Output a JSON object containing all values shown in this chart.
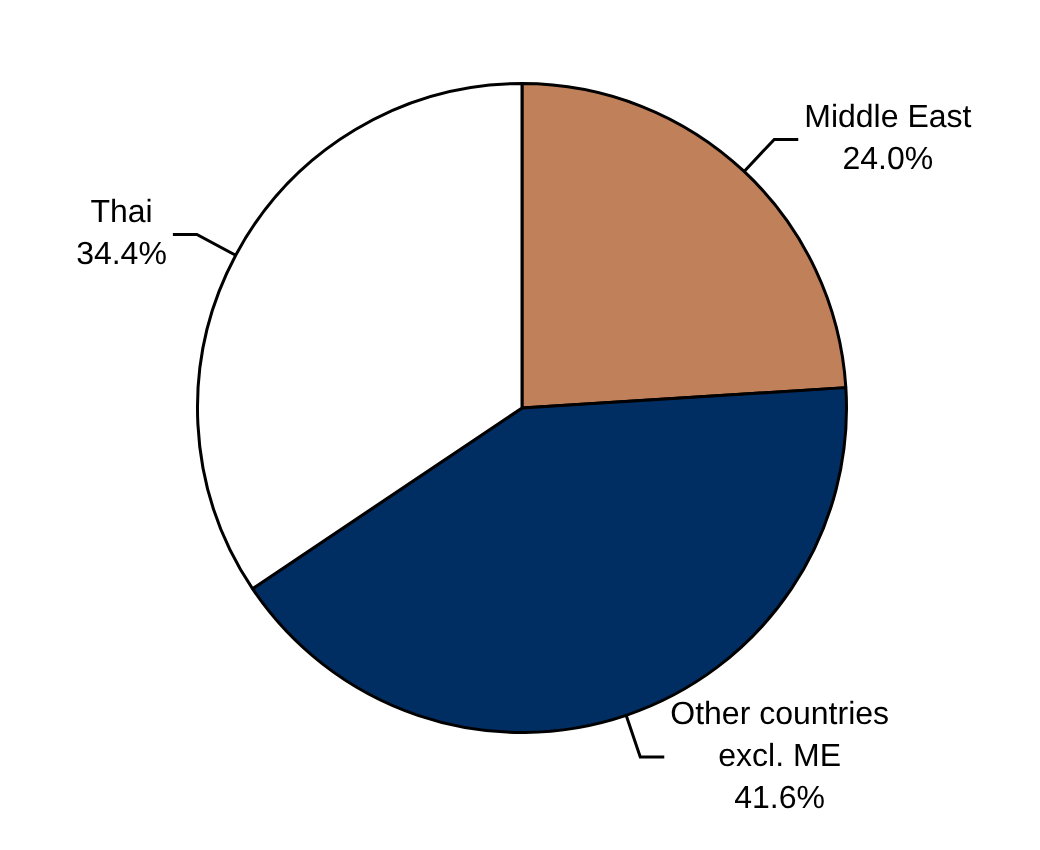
{
  "chart_data": {
    "type": "pie",
    "categories": [
      "Middle East",
      "Other countries excl. ME",
      "Thai"
    ],
    "values": [
      24.0,
      41.6,
      34.4
    ],
    "value_labels": [
      "24.0%",
      "41.6%",
      "34.4%"
    ],
    "colors": [
      "#c0805a",
      "#002d62",
      "#ffffff"
    ],
    "legend": false
  }
}
